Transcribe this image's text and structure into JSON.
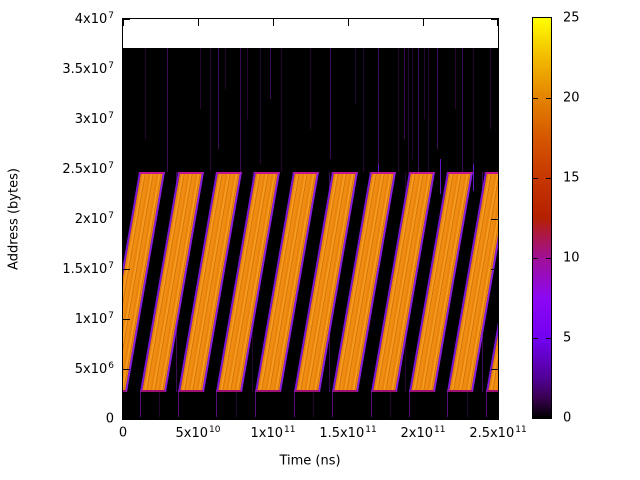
{
  "figure": {
    "background": "#ffffff"
  },
  "chart_data": {
    "type": "heatmap",
    "title": "",
    "xlabel": "Time (ns)",
    "ylabel": "Address (bytes)",
    "xlim_ns": [
      0,
      250000000000
    ],
    "ylim_bytes": [
      0,
      40000000
    ],
    "grid": false,
    "legend_position": "colorbar-right",
    "x_ticks": {
      "values_ns": [
        0,
        50000000000,
        100000000000,
        150000000000,
        200000000000,
        250000000000
      ],
      "labels": [
        "0",
        "5x10^10",
        "1x10^11",
        "1.5x10^11",
        "2x10^11",
        "2.5x10^11"
      ]
    },
    "y_ticks": {
      "values_bytes": [
        0,
        5000000,
        10000000,
        15000000,
        20000000,
        25000000,
        30000000,
        35000000,
        40000000
      ],
      "labels": [
        "0",
        "5x10^6",
        "1x10^7",
        "1.5x10^7",
        "2x10^7",
        "2.5x10^7",
        "3x10^7",
        "3.5x10^7",
        "4x10^7"
      ]
    },
    "colorbar": {
      "min": 0,
      "max": 25,
      "tick_values": [
        0,
        5,
        10,
        15,
        20,
        25
      ],
      "tick_labels": [
        "0",
        "5",
        "10",
        "15",
        "20",
        "25"
      ],
      "palette_name": "gnuplot pm3d (black-violet-magenta-red-orange-yellow)",
      "gradient_stops": [
        {
          "pos": 0.0,
          "color": "#000000"
        },
        {
          "pos": 0.05,
          "color": "#390050"
        },
        {
          "pos": 0.1,
          "color": "#510096"
        },
        {
          "pos": 0.2,
          "color": "#7202f2"
        },
        {
          "pos": 0.3,
          "color": "#8c07f3"
        },
        {
          "pos": 0.4,
          "color": "#a11096"
        },
        {
          "pos": 0.45,
          "color": "#ab174f"
        },
        {
          "pos": 0.5,
          "color": "#b42000"
        },
        {
          "pos": 0.6,
          "color": "#c63700"
        },
        {
          "pos": 0.7,
          "color": "#d55700"
        },
        {
          "pos": 0.8,
          "color": "#e48300"
        },
        {
          "pos": 0.9,
          "color": "#f2ba00"
        },
        {
          "pos": 1.0,
          "color": "#ffff00"
        }
      ]
    },
    "field": {
      "time_range_ns": [
        0,
        250000000000
      ],
      "address_max_bytes": 37100000,
      "background_value": 0,
      "background_color": "#000000"
    },
    "sweep_band": {
      "address_min_bytes": 2700000,
      "address_max_bytes": 24700000,
      "stripe_value_approx": 21,
      "stripe_fill_colors": [
        "#e8820a",
        "#f49a1e",
        "#d97506",
        "#ef8d12"
      ],
      "edge_colors": {
        "left": "#7b16d6",
        "right": "#8c1ee2",
        "top": "#c21690",
        "bottom": "#9e1072"
      }
    },
    "sweeps": {
      "count": 11,
      "period_ns": 25670000000,
      "rise_time_ns": 25330000000,
      "dwell_time_ns": 17330000000,
      "start_times_ns": [
        -14670000000,
        11000000000,
        36670000000,
        62330000000,
        88000000000,
        113670000000,
        139330000000,
        165000000000,
        190670000000,
        216330000000,
        242000000000
      ]
    },
    "noise_streaks": {
      "format": "[time_x1e9_ns, addr_lo_x1e6_bytes, addr_hi_x1e6_bytes, shade]",
      "shades": {
        "dark": "#24052e",
        "mid": "#3c0a52",
        "bright": "#6414c8",
        "below": "#55107a"
      },
      "points": [
        [
          14.7,
          28,
          37.1,
          "dark"
        ],
        [
          29.3,
          24.7,
          37.1,
          "mid"
        ],
        [
          51.3,
          31,
          37.1,
          "dark"
        ],
        [
          58,
          24.7,
          37.1,
          "dark"
        ],
        [
          63.3,
          27,
          37.1,
          "mid"
        ],
        [
          68,
          33,
          37.1,
          "dark"
        ],
        [
          78,
          24.7,
          37.1,
          "mid"
        ],
        [
          82.7,
          30,
          37.1,
          "dark"
        ],
        [
          91.3,
          25.5,
          37.1,
          "dark"
        ],
        [
          98,
          32,
          37.1,
          "mid"
        ],
        [
          105.3,
          24.7,
          37.1,
          "dark"
        ],
        [
          124.7,
          29,
          37.1,
          "dark"
        ],
        [
          138,
          26,
          37.1,
          "mid"
        ],
        [
          154.7,
          31.5,
          37.1,
          "dark"
        ],
        [
          160,
          24.7,
          37.1,
          "dark"
        ],
        [
          170,
          24.7,
          37.1,
          "mid"
        ],
        [
          170,
          22.5,
          25.5,
          "bright"
        ],
        [
          183.3,
          24.7,
          37.1,
          "dark"
        ],
        [
          187.3,
          28,
          37.1,
          "mid"
        ],
        [
          190,
          24.7,
          37.1,
          "dark"
        ],
        [
          192.7,
          26,
          37.1,
          "dark"
        ],
        [
          196.7,
          24.7,
          37.1,
          "mid"
        ],
        [
          200.7,
          30,
          37.1,
          "dark"
        ],
        [
          203.3,
          24.7,
          37.1,
          "dark"
        ],
        [
          209.3,
          27,
          37.1,
          "mid"
        ],
        [
          211.3,
          22.5,
          26,
          "bright"
        ],
        [
          221.3,
          31,
          37.1,
          "dark"
        ],
        [
          226,
          24.7,
          37.1,
          "mid"
        ],
        [
          233.3,
          24.7,
          37.1,
          "dark"
        ],
        [
          233.3,
          22.8,
          25.5,
          "bright"
        ],
        [
          244.7,
          29,
          37.1,
          "dark"
        ],
        [
          35,
          2.7,
          24.7,
          "mid"
        ],
        [
          86,
          2.7,
          24.7,
          "dark"
        ],
        [
          137,
          2.7,
          24.7,
          "mid"
        ],
        [
          188,
          2.7,
          24.7,
          "dark"
        ],
        [
          239,
          2.7,
          24.7,
          "mid"
        ],
        [
          11,
          0.2,
          2.7,
          "below"
        ],
        [
          36.7,
          0.2,
          2.7,
          "below"
        ],
        [
          62.3,
          0.2,
          2.7,
          "below"
        ],
        [
          88,
          0.2,
          2.7,
          "below"
        ],
        [
          113.7,
          0.2,
          2.7,
          "below"
        ],
        [
          139.3,
          0.2,
          2.7,
          "below"
        ],
        [
          165,
          0.2,
          2.7,
          "below"
        ],
        [
          190.7,
          0.2,
          2.7,
          "below"
        ],
        [
          216.3,
          0.2,
          2.7,
          "below"
        ],
        [
          242,
          0.2,
          2.7,
          "below"
        ],
        [
          23.8,
          0.2,
          2.7,
          "dark"
        ],
        [
          75,
          0.2,
          2.7,
          "dark"
        ],
        [
          126.5,
          0.2,
          2.7,
          "dark"
        ],
        [
          178,
          0.2,
          2.7,
          "dark"
        ],
        [
          229.5,
          0.2,
          2.7,
          "dark"
        ]
      ]
    }
  }
}
